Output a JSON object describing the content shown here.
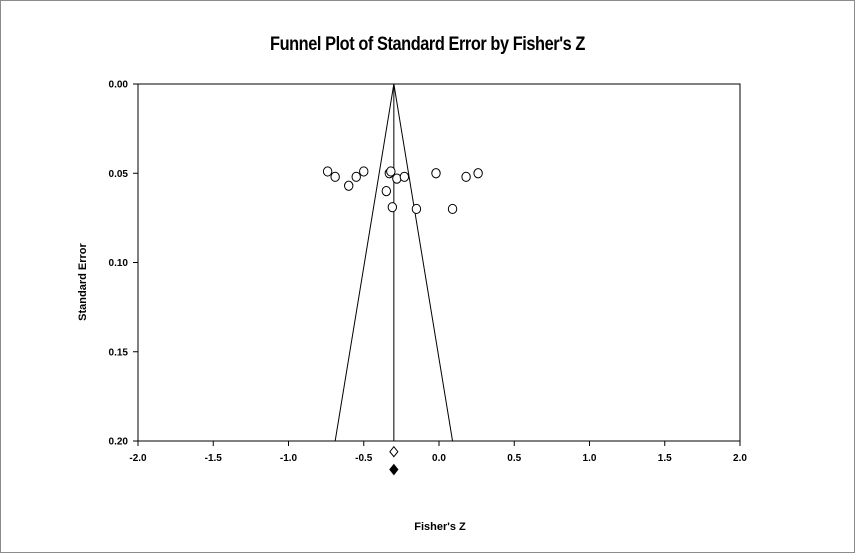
{
  "chart_data": {
    "type": "scatter",
    "title": "Funnel Plot of Standard Error by Fisher's Z",
    "xlabel": "Fisher's Z",
    "ylabel": "Standard Error",
    "xlim": [
      -2.0,
      2.0
    ],
    "ylim": [
      0.0,
      0.2
    ],
    "y_inverted": true,
    "x_ticks": [
      "-2.0",
      "-1.5",
      "-1.0",
      "-0.5",
      "0.0",
      "0.5",
      "1.0",
      "1.5",
      "2.0"
    ],
    "y_ticks": [
      "0.00",
      "0.05",
      "0.10",
      "0.15",
      "0.20"
    ],
    "grid": false,
    "legend": "none",
    "studies": {
      "x": [
        -0.74,
        -0.69,
        -0.6,
        -0.55,
        -0.5,
        -0.35,
        -0.33,
        -0.32,
        -0.31,
        -0.28,
        -0.23,
        -0.15,
        -0.02,
        0.09,
        0.18,
        0.26
      ],
      "y": [
        0.049,
        0.052,
        0.057,
        0.052,
        0.049,
        0.06,
        0.05,
        0.049,
        0.069,
        0.053,
        0.052,
        0.07,
        0.05,
        0.07,
        0.052,
        0.05
      ]
    },
    "pooled_estimate": -0.3,
    "funnel": {
      "apex": [
        -0.3,
        0.0
      ],
      "base_left": [
        -0.69,
        0.2
      ],
      "base_right": [
        0.09,
        0.2
      ]
    },
    "summary_markers": [
      {
        "style": "open-diamond",
        "x": -0.3,
        "y": 0.206
      },
      {
        "style": "filled-diamond",
        "x": -0.3,
        "y": 0.216
      }
    ],
    "colors": {
      "marker": "#000000",
      "axis": "#000000"
    }
  }
}
